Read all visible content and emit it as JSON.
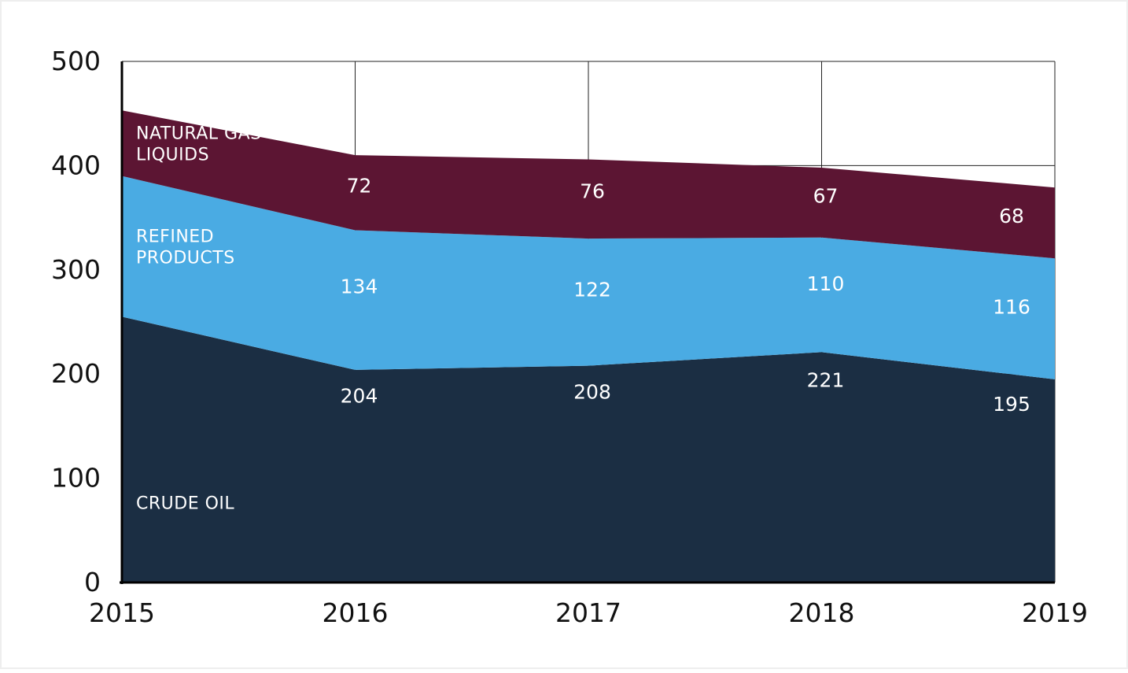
{
  "chart_data": {
    "type": "area",
    "stacked": true,
    "x": [
      2015,
      2016,
      2017,
      2018,
      2019
    ],
    "x_tick_labels": [
      "2015",
      "2016",
      "2017",
      "2018",
      "2019"
    ],
    "y_tick_labels": [
      "0",
      "100",
      "200",
      "300",
      "400",
      "500"
    ],
    "ylim": [
      0,
      500
    ],
    "grid": true,
    "title": "",
    "xlabel": "",
    "ylabel": "",
    "series": [
      {
        "name": "CRUDE OIL",
        "name_lines": [
          "CRUDE OIL"
        ],
        "color": "#1b2e43",
        "values": [
          255,
          204,
          208,
          221,
          195
        ],
        "data_labels": [
          "",
          "204",
          "208",
          "221",
          "195"
        ]
      },
      {
        "name": "REFINED PRODUCTS",
        "name_lines": [
          "REFINED",
          "PRODUCTS"
        ],
        "color": "#4aabe3",
        "values": [
          135,
          134,
          122,
          110,
          116
        ],
        "data_labels": [
          "",
          "134",
          "122",
          "110",
          "116"
        ]
      },
      {
        "name": "NATURAL GAS LIQUIDS",
        "name_lines": [
          "NATURAL GAS",
          "LIQUIDS"
        ],
        "color": "#5c1533",
        "values": [
          63,
          72,
          76,
          67,
          68
        ],
        "data_labels": [
          "",
          "72",
          "76",
          "67",
          "68"
        ]
      }
    ]
  }
}
